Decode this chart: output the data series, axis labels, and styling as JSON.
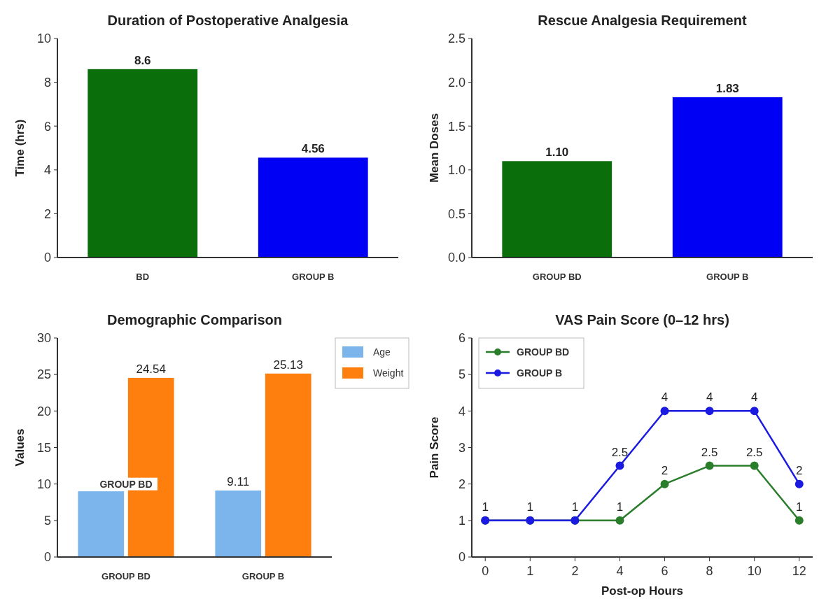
{
  "chart_data": [
    {
      "type": "bar",
      "title": "Duration of Postoperative Analgesia",
      "ylabel": "Time (hrs)",
      "categories": [
        "BD",
        "GROUP B"
      ],
      "values": [
        8.6,
        4.56
      ],
      "colors": [
        "#0a6e0a",
        "#0000f5"
      ],
      "ylim": [
        0,
        10
      ],
      "yticks": [
        0,
        2,
        4,
        6,
        8,
        10
      ],
      "data_labels": true,
      "grid": false,
      "legend": false
    },
    {
      "type": "bar",
      "title": "Rescue Analgesia Requirement",
      "ylabel": "Mean Doses",
      "categories": [
        "GROUP BD",
        "GROUP B"
      ],
      "values": [
        1.1,
        1.83
      ],
      "value_labels": [
        "1.10",
        "1.83"
      ],
      "colors": [
        "#0a6e0a",
        "#0000f5"
      ],
      "ylim": [
        0,
        2.5
      ],
      "yticks": [
        {
          "value": 0,
          "label": "0.0"
        },
        {
          "value": 0.5,
          "label": "0.5"
        },
        {
          "value": 1,
          "label": "1.0"
        },
        {
          "value": 1.5,
          "label": "1.5"
        },
        {
          "value": 2,
          "label": "2.0"
        },
        {
          "value": 2.5,
          "label": "2.5"
        }
      ],
      "grid": false,
      "legend": false
    },
    {
      "type": "bar",
      "title": "Demographic Comparison",
      "ylabel": "Values",
      "categories": [
        "GROUP BD",
        "GROUP B"
      ],
      "series": [
        {
          "name": "Age",
          "color": "#7cb5ec",
          "values": [
            9.0,
            9.11
          ],
          "value_labels": [
            null,
            "9.11"
          ]
        },
        {
          "name": "Weight",
          "color": "#ff7f0e",
          "values": [
            24.54,
            25.13
          ],
          "value_labels": [
            "24.54",
            "25.13"
          ]
        }
      ],
      "ylim": [
        0,
        30
      ],
      "yticks": [
        0,
        5,
        10,
        15,
        20,
        25,
        30
      ],
      "annotations": [
        {
          "text": "GROUP BD",
          "x": "GROUP BD",
          "y": 10
        }
      ],
      "grid": false,
      "legend": "top right"
    },
    {
      "type": "line",
      "title": "VAS Pain Score (0–12 hrs)",
      "xlabel": "Post-op Hours",
      "ylabel": "Pain Score",
      "categories": [
        "0",
        "1",
        "2",
        "4",
        "6",
        "8",
        "10",
        "12"
      ],
      "series": [
        {
          "name": "GROUP BD",
          "color": "#2a7d2a",
          "values": [
            1,
            1,
            1,
            1,
            2,
            2.5,
            2.5,
            1
          ],
          "value_labels": [
            "1",
            "1",
            "1",
            "1",
            "2",
            "2.5",
            "2.5",
            "1"
          ]
        },
        {
          "name": "GROUP B",
          "color": "#1a1ae0",
          "values": [
            1,
            1,
            1,
            2.5,
            4,
            4,
            4,
            2
          ],
          "value_labels": [
            null,
            null,
            null,
            "2.5",
            "4",
            "4",
            "4",
            "2"
          ]
        }
      ],
      "ylim": [
        0,
        6
      ],
      "yticks": [
        0,
        1,
        2,
        3,
        4,
        5,
        6
      ],
      "marker": "circle",
      "line_style": "solid",
      "grid": false,
      "legend": "top left"
    }
  ]
}
